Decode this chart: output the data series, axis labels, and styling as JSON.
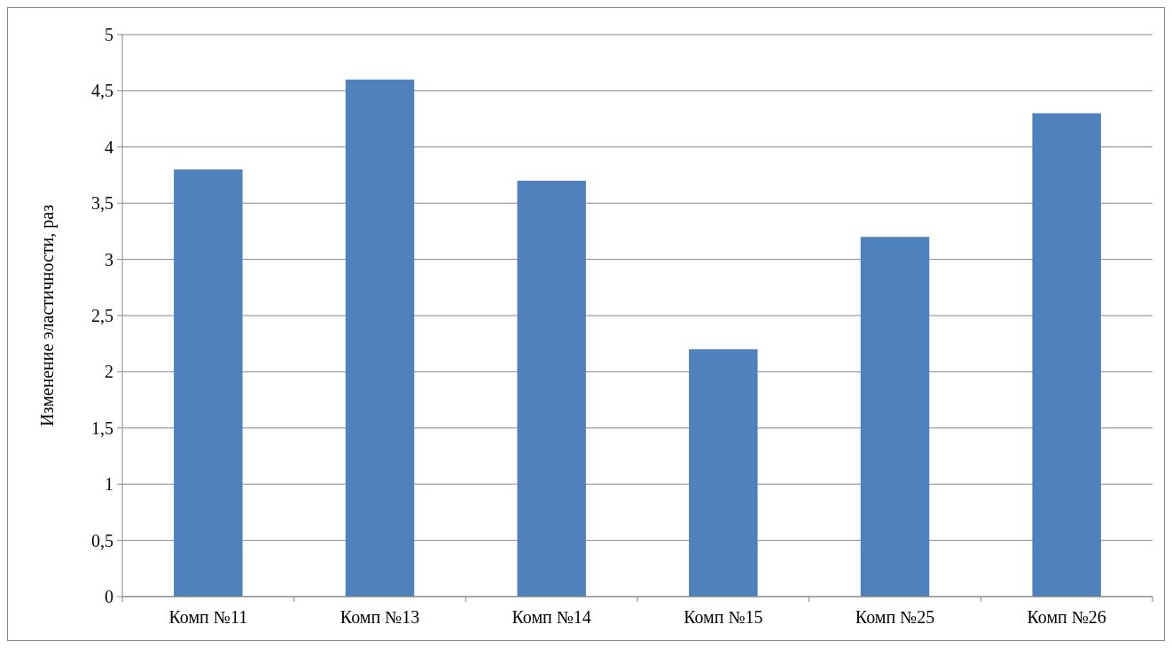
{
  "chart_data": {
    "type": "bar",
    "ylabel": "Изменение эластичности, раз",
    "categories": [
      "Комп №11",
      "Комп №13",
      "Комп №14",
      "Комп №15",
      "Комп №25",
      "Комп №26"
    ],
    "values": [
      3.8,
      4.6,
      3.7,
      2.2,
      3.2,
      4.3
    ],
    "color": "#4f81bd",
    "ylim": [
      0,
      5
    ],
    "yticks": [
      0,
      {
        "value": 0.5,
        "label": "0,5"
      },
      1,
      {
        "value": 1.5,
        "label": "1,5"
      },
      2,
      {
        "value": 2.5,
        "label": "2,5"
      },
      3,
      {
        "value": 3.5,
        "label": "3,5"
      },
      4,
      {
        "value": 4.5,
        "label": "4,5"
      },
      5
    ],
    "grid": "y"
  }
}
